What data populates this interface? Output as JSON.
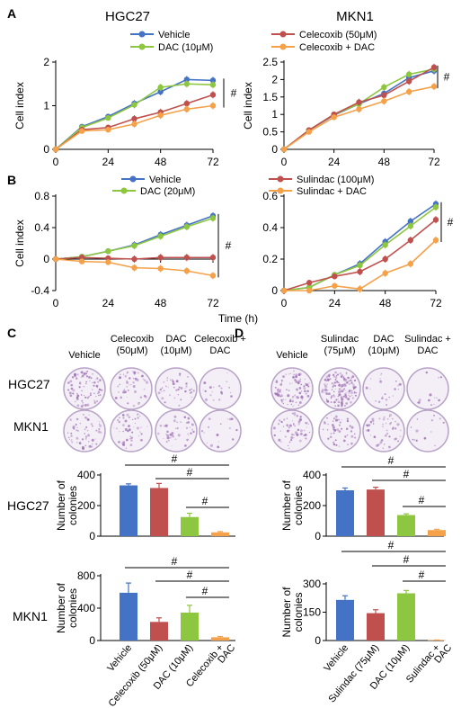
{
  "panels": {
    "A": "A",
    "B": "B",
    "C": "C",
    "D": "D"
  },
  "colors": {
    "vehicle": "#4472C4",
    "dac": "#8DC63F",
    "celecoxib": "#C0504D",
    "combo": "#F4A14A",
    "plate": "#9B6CB3"
  },
  "headers": {
    "hgc27": "HGC27",
    "mkn1": "MKN1"
  },
  "time_label": "Time (h)",
  "legend_a": [
    "Vehicle",
    "DAC (10μM)",
    "Celecoxib (50μM)",
    "Celecoxib + DAC"
  ],
  "legend_b": [
    "Vehicle",
    "DAC (20μM)",
    "Sulindac (100μM)",
    "Sulindac + DAC"
  ],
  "plate_labels": {
    "C": [
      [
        "Vehicle"
      ],
      [
        "Celecoxib",
        "(50μM)"
      ],
      [
        "DAC",
        "(10μM)"
      ],
      [
        "Celecoxib +",
        "DAC"
      ]
    ],
    "D": [
      [
        "Vehicle"
      ],
      [
        "Sulindac",
        "(75μM)"
      ],
      [
        "DAC",
        "(10μM)"
      ],
      [
        "Sulindac +",
        "DAC"
      ]
    ],
    "rows": [
      "HGC27",
      "MKN1"
    ]
  },
  "chart_data": [
    {
      "type": "line",
      "panel": "A",
      "title": "HGC27",
      "xlabel": "",
      "ylabel": "Cell index",
      "x": [
        0,
        12,
        24,
        36,
        48,
        60,
        72
      ],
      "xticks": [
        0,
        24,
        48,
        72
      ],
      "ylim": [
        0,
        2
      ],
      "yticks": [
        0,
        1,
        2
      ],
      "series": [
        {
          "name": "Vehicle",
          "values": [
            0,
            0.52,
            0.75,
            1.05,
            1.32,
            1.6,
            1.58
          ]
        },
        {
          "name": "DAC (10μM)",
          "values": [
            0,
            0.5,
            0.72,
            1.02,
            1.42,
            1.5,
            1.48
          ]
        },
        {
          "name": "Celecoxib (50μM)",
          "values": [
            0,
            0.45,
            0.5,
            0.7,
            0.85,
            1.05,
            1.25
          ]
        },
        {
          "name": "Celecoxib + DAC",
          "values": [
            0,
            0.42,
            0.45,
            0.58,
            0.78,
            0.92,
            1.0
          ]
        }
      ],
      "annotation": "#"
    },
    {
      "type": "line",
      "panel": "A",
      "title": "MKN1",
      "xlabel": "",
      "ylabel": "Cell index",
      "x": [
        0,
        12,
        24,
        36,
        48,
        60,
        72
      ],
      "xticks": [
        0,
        24,
        48,
        72
      ],
      "ylim": [
        0,
        2.5
      ],
      "yticks": [
        0,
        0.5,
        1,
        1.5,
        2,
        2.5
      ],
      "series": [
        {
          "name": "Vehicle",
          "values": [
            0,
            0.55,
            0.98,
            1.3,
            1.6,
            2.05,
            2.25
          ]
        },
        {
          "name": "DAC (10μM)",
          "values": [
            0,
            0.55,
            1.0,
            1.3,
            1.78,
            2.15,
            2.3
          ]
        },
        {
          "name": "Celecoxib (50μM)",
          "values": [
            0,
            0.55,
            1.0,
            1.35,
            1.55,
            1.95,
            2.35
          ]
        },
        {
          "name": "Celecoxib + DAC",
          "values": [
            0,
            0.5,
            0.92,
            1.15,
            1.38,
            1.65,
            1.8
          ]
        }
      ],
      "annotation": "#"
    },
    {
      "type": "line",
      "panel": "B",
      "title": "",
      "xlabel": "Time (h)",
      "ylabel": "Cell index",
      "x": [
        0,
        12,
        24,
        36,
        48,
        60,
        72
      ],
      "xticks": [
        0,
        24,
        48,
        72
      ],
      "ylim": [
        -0.4,
        0.8
      ],
      "yticks": [
        -0.4,
        0,
        0.4,
        0.8
      ],
      "series": [
        {
          "name": "Vehicle",
          "values": [
            0,
            0.03,
            0.1,
            0.18,
            0.31,
            0.43,
            0.55
          ]
        },
        {
          "name": "DAC (20μM)",
          "values": [
            0,
            0.03,
            0.1,
            0.17,
            0.29,
            0.41,
            0.52
          ]
        },
        {
          "name": "Sulindac (100μM)",
          "values": [
            0,
            0.02,
            0.01,
            0.0,
            0.02,
            0.02,
            0.02
          ]
        },
        {
          "name": "Sulindac + DAC",
          "values": [
            0,
            -0.03,
            -0.04,
            -0.11,
            -0.12,
            -0.15,
            -0.21
          ]
        }
      ],
      "annotation": "#"
    },
    {
      "type": "line",
      "panel": "B",
      "title": "",
      "xlabel": "",
      "ylabel": "",
      "x": [
        0,
        12,
        24,
        36,
        48,
        60,
        72
      ],
      "xticks": [
        0,
        24,
        48,
        72
      ],
      "ylim": [
        0,
        0.6
      ],
      "yticks": [
        0,
        0.2,
        0.4,
        0.6
      ],
      "series": [
        {
          "name": "Vehicle",
          "values": [
            0,
            0.02,
            0.1,
            0.17,
            0.31,
            0.44,
            0.55
          ]
        },
        {
          "name": "DAC (20μM)",
          "values": [
            0,
            0.02,
            0.1,
            0.16,
            0.29,
            0.41,
            0.53
          ]
        },
        {
          "name": "Sulindac (100μM)",
          "values": [
            0,
            0.05,
            0.09,
            0.12,
            0.2,
            0.32,
            0.45
          ]
        },
        {
          "name": "Sulindac + DAC",
          "values": [
            0,
            0.0,
            0.03,
            0.01,
            0.11,
            0.17,
            0.32
          ]
        }
      ],
      "annotation": "#"
    },
    {
      "type": "bar",
      "panel": "C",
      "title": "",
      "ylabel": "Number of colonies",
      "ylim": [
        0,
        400
      ],
      "yticks": [
        0,
        200,
        400
      ],
      "categories": [
        "Vehicle",
        "Celecoxib (50μM)",
        "DAC (10μM)",
        "Celecoxib + DAC"
      ],
      "values": [
        332,
        315,
        125,
        25
      ],
      "errors": [
        10,
        30,
        25,
        5
      ],
      "annotation": "#"
    },
    {
      "type": "bar",
      "panel": "C",
      "title": "",
      "ylabel": "Number of colonies",
      "ylim": [
        0,
        800
      ],
      "yticks": [
        0,
        400,
        800
      ],
      "categories": [
        "Vehicle",
        "Celecoxib (50μM)",
        "DAC (10μM)",
        "Celecoxib + DAC"
      ],
      "values": [
        590,
        230,
        345,
        40
      ],
      "errors": [
        120,
        50,
        90,
        10
      ],
      "annotation": "#"
    },
    {
      "type": "bar",
      "panel": "D",
      "title": "",
      "ylabel": "Number of colonies",
      "ylim": [
        0,
        400
      ],
      "yticks": [
        0,
        200,
        400
      ],
      "categories": [
        "Vehicle",
        "Sulindac (75μM)",
        "DAC (10μM)",
        "Sulindac + DAC"
      ],
      "values": [
        300,
        305,
        138,
        40
      ],
      "errors": [
        15,
        15,
        8,
        5
      ],
      "annotation": "#"
    },
    {
      "type": "bar",
      "panel": "D",
      "title": "",
      "ylabel": "Number of colonies",
      "ylim": [
        0,
        300
      ],
      "yticks": [
        0,
        150,
        300
      ],
      "categories": [
        "Vehicle",
        "Sulindac (75μM)",
        "DAC (10μM)",
        "Sulindac + DAC"
      ],
      "values": [
        215,
        145,
        250,
        2
      ],
      "errors": [
        22,
        18,
        15,
        1
      ],
      "annotation": "#"
    }
  ]
}
